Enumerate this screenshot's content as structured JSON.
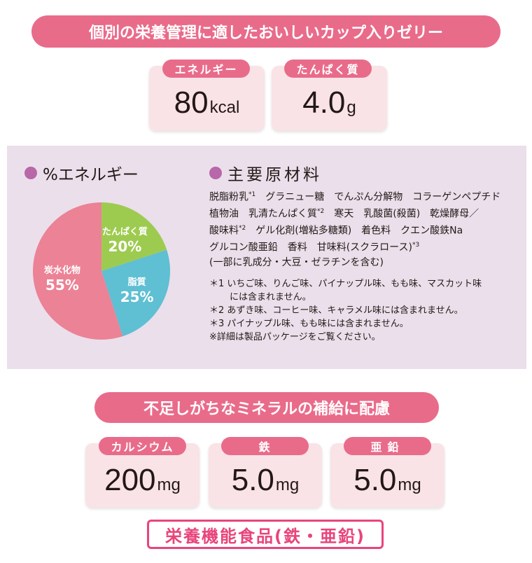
{
  "title": "個別の栄養管理に適したおいしいカップ入りゼリー",
  "nutrition": [
    {
      "label": "エネルギー",
      "value": "80",
      "unit": "kcal"
    },
    {
      "label": "たんぱく質",
      "value": "4.0",
      "unit": "g"
    }
  ],
  "energy_section": {
    "heading": "%エネルギー",
    "chart_data": {
      "type": "pie",
      "slices": [
        {
          "label": "たんぱく質",
          "value": 20,
          "display": "20%",
          "color": "#9dcb50"
        },
        {
          "label": "脂質",
          "value": 25,
          "display": "25%",
          "color": "#5fbfd3"
        },
        {
          "label": "炭水化物",
          "value": 55,
          "display": "55%",
          "color": "#ec8295"
        }
      ]
    }
  },
  "ingredients": {
    "heading": "主要原材料",
    "lines": [
      [
        "脱脂粉乳",
        "*1",
        "　グラニュー糖　でんぷん分解物　コラーゲンペプチド"
      ],
      [
        "植物油　乳清たんぱく質",
        "*2",
        "　寒天　乳酸菌(殺菌)　乾燥酵母／"
      ],
      [
        "酸味料",
        "*2",
        "　ゲル化剤(増粘多糖類)　着色料　クエン酸鉄Na"
      ],
      [
        "グルコン酸亜鉛　香料　甘味料(スクラロース)",
        "*3",
        ""
      ],
      [
        "(一部に乳成分・大豆・ゼラチンを含む)",
        "",
        ""
      ]
    ],
    "notes": [
      "＊1 いちご味、りんご味、パイナップル味、もも味、マスカット味",
      "には含まれません。",
      "＊2 あずき味、コーヒー味、キャラメル味には含まれません。",
      "＊3 パイナップル味、もも味には含まれません。",
      "※詳細は製品パッケージをご覧ください。"
    ]
  },
  "minerals_title": "不足しがちなミネラルの補給に配慮",
  "minerals": [
    {
      "label": "カルシウム",
      "value": "200",
      "unit": "mg"
    },
    {
      "label": "鉄",
      "value": "5.0",
      "unit": "mg"
    },
    {
      "label": "亜鉛",
      "value": "5.0",
      "unit": "mg"
    }
  ],
  "food_label": "栄養機能食品(鉄・亜鉛)",
  "colors": {
    "accent": "#e96b8a",
    "panel": "#ebdfeb",
    "card": "#f9e3e6",
    "label": "#e8457a"
  }
}
